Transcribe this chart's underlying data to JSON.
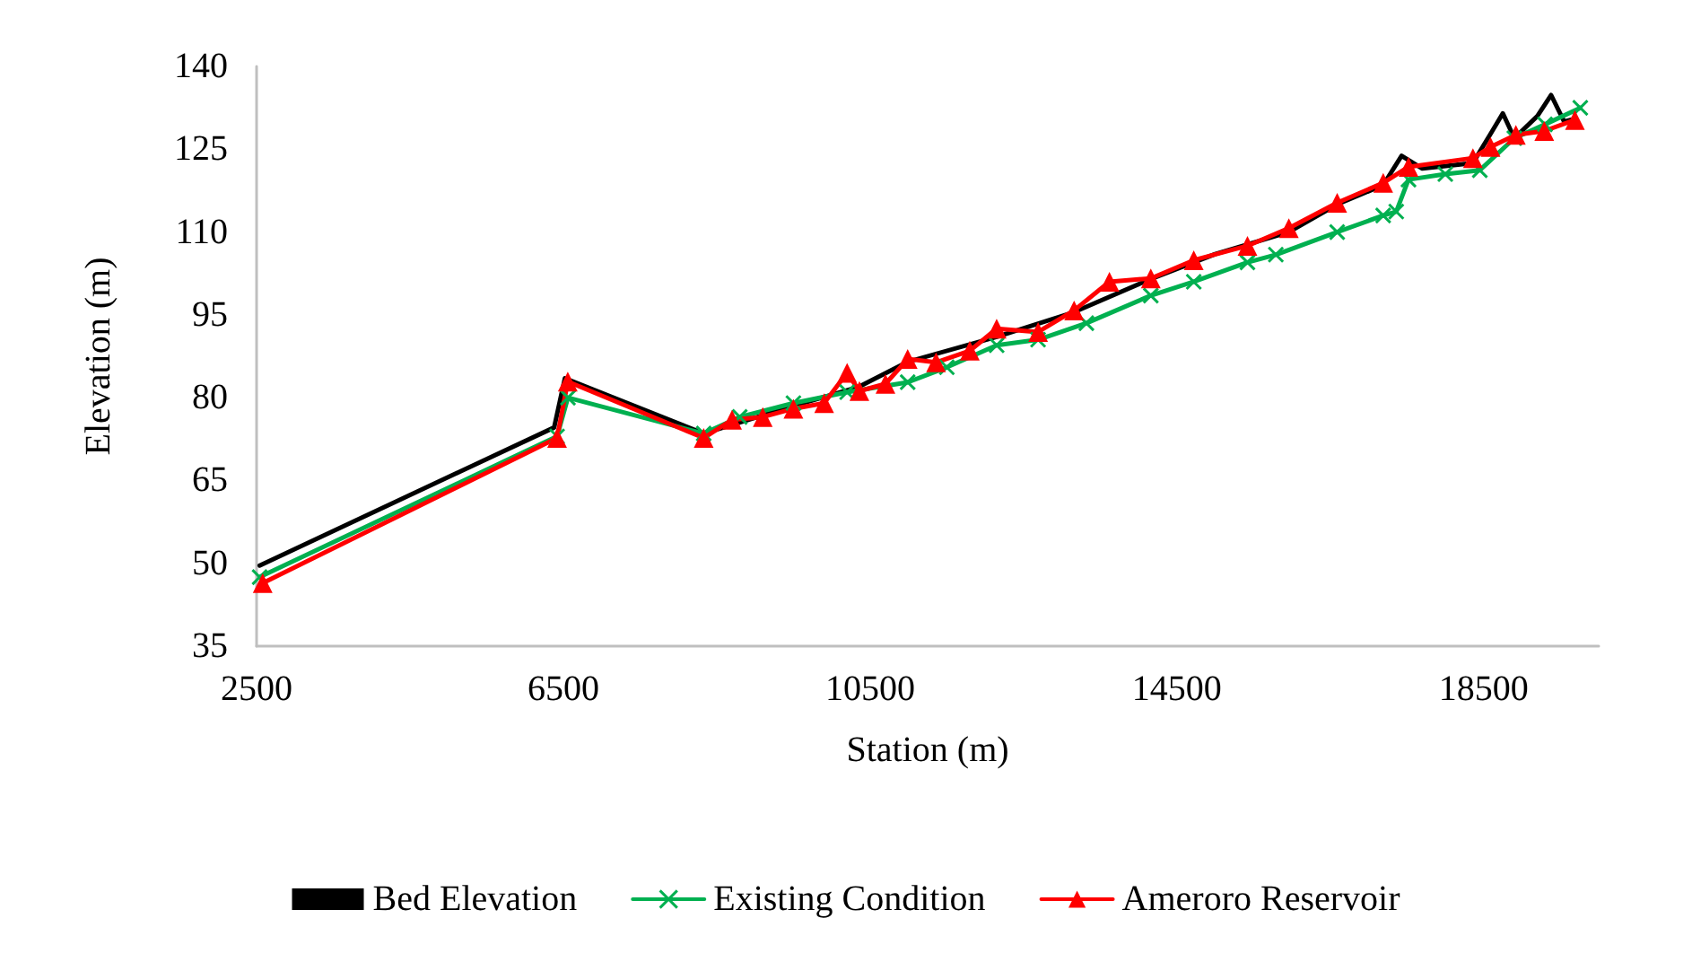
{
  "chart_data": {
    "type": "line",
    "xlabel": "Station (m)",
    "ylabel": "Elevation (m)",
    "xlim": [
      2500,
      20000
    ],
    "xticks": [
      2500,
      6500,
      10500,
      14500,
      18500
    ],
    "ylim": [
      35,
      140
    ],
    "yticks": [
      35,
      50,
      65,
      80,
      95,
      110,
      125,
      140
    ],
    "grid": false,
    "legend": "bottom",
    "series": [
      {
        "name": "Bed Elevation",
        "color": "#000000",
        "marker": "none",
        "x": [
          2540,
          6380,
          6520,
          8330,
          9500,
          10360,
          10990,
          12150,
          13160,
          14160,
          15000,
          15960,
          16590,
          17190,
          17430,
          17700,
          18360,
          18600,
          18750,
          18900,
          19200,
          19380,
          19550,
          19690
        ],
        "values": [
          49.6,
          74.6,
          83.5,
          73.5,
          78.5,
          82,
          86.5,
          91,
          95.5,
          101.5,
          106,
          110,
          115,
          118.5,
          123.8,
          121.5,
          122.5,
          128,
          131.5,
          127,
          131,
          134.8,
          130,
          130.5
        ]
      },
      {
        "name": "Existing Condition",
        "color": "#00b050",
        "marker": "cross",
        "x": [
          2540,
          6418,
          6560,
          8330,
          8800,
          9500,
          10200,
          10990,
          11500,
          12150,
          12690,
          13320,
          14160,
          14720,
          15420,
          15790,
          16590,
          17190,
          17360,
          17520,
          18000,
          18450,
          18900,
          19300,
          19760
        ],
        "values": [
          47.5,
          73,
          80,
          73.5,
          76.5,
          79,
          81,
          82.8,
          85.5,
          89.5,
          90.5,
          93.5,
          98.5,
          101,
          104.5,
          105.9,
          110,
          113,
          113.7,
          119.5,
          120.5,
          121.2,
          127,
          129.5,
          132.5
        ]
      },
      {
        "name": "Ameroro Reservoir",
        "color": "#ff0000",
        "marker": "triangle",
        "x": [
          2580,
          6418,
          6558,
          8330,
          8700,
          9100,
          9500,
          9900,
          10200,
          10360,
          10700,
          10990,
          11360,
          11800,
          12150,
          12690,
          13160,
          13620,
          14160,
          14720,
          15420,
          15960,
          16590,
          17190,
          17520,
          18360,
          18590,
          18920,
          19290,
          19690
        ],
        "values": [
          46.4,
          72.7,
          82.9,
          72.7,
          76,
          76.5,
          78,
          79,
          84.5,
          81.2,
          82.5,
          87,
          86.4,
          88.5,
          92.5,
          91.9,
          95.8,
          101,
          101.6,
          104.9,
          107.5,
          110.7,
          115.3,
          118.9,
          121.8,
          123.4,
          125.4,
          127.6,
          128.3,
          130.3
        ]
      }
    ]
  }
}
